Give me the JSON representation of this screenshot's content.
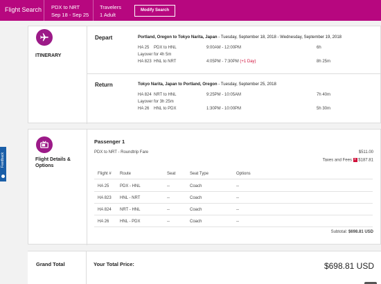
{
  "topbar": {
    "title": "Flight Search",
    "route": "PDX to NRT",
    "dates": "Sep 18 - Sep 25",
    "travelers_label": "Travelers",
    "travelers_value": "1 Adult",
    "modify_button": "Modify Search"
  },
  "feedback": {
    "label": "Feedback"
  },
  "itinerary": {
    "section_label": "ITINERARY",
    "depart": {
      "heading": "Depart",
      "route_bold": "Portland, Oregon to Tokyo Narita, Japan",
      "dates": " - Tuesday, September 18, 2018 - Wednesday, September 19, 2018",
      "flights": [
        {
          "flight": "HA 25",
          "route": "PDX to HNL",
          "time": "9:00AM - 12:00PM",
          "plus_day": "",
          "duration": "6h"
        },
        {
          "flight": "HA 823",
          "route": "HNL to NRT",
          "time": "4:05PM - 7:30PM",
          "plus_day": "(+1 Day)",
          "duration": "8h 25m"
        }
      ],
      "layover": "Layover for 4h 5m"
    },
    "return": {
      "heading": "Return",
      "route_bold": "Tokyo Narita, Japan to Portland, Oregon",
      "dates": " - Tuesday, September 25, 2018",
      "flights": [
        {
          "flight": "HA 824",
          "route": "NRT to HNL",
          "time": "9:25PM - 10:05AM",
          "plus_day": "",
          "duration": "7h 40m"
        },
        {
          "flight": "HA 26",
          "route": "HNL to PDX",
          "time": "1:30PM - 10:00PM",
          "plus_day": "",
          "duration": "5h 30m"
        }
      ],
      "layover": "Layover for 3h 25m"
    }
  },
  "details": {
    "section_label_1": "Flight Details &",
    "section_label_2": "Options",
    "passenger": "Passenger 1",
    "fare_label": "PDX to NRT - Roundtrip Fare",
    "fare_amount": "$511.00",
    "taxes_label": "Taxes and Fees",
    "taxes_amount": "$187.81",
    "table": {
      "headers": [
        "Flight #",
        "Route",
        "Seat",
        "Seat Type",
        "Options"
      ],
      "rows": [
        [
          "HA 25",
          "PDX - HNL",
          "--",
          "Coach",
          "--"
        ],
        [
          "HA 823",
          "HNL - NRT",
          "--",
          "Coach",
          "--"
        ],
        [
          "HA 824",
          "NRT - HNL",
          "--",
          "Coach",
          "--"
        ],
        [
          "HA 26",
          "HNL - PDX",
          "--",
          "Coach",
          "--"
        ]
      ]
    },
    "subtotal_label": "Subtotal:",
    "subtotal_value": "$698.81 USD"
  },
  "grand_total": {
    "label": "Grand Total",
    "price_label": "Your Total Price:",
    "price_value": "$698.81 USD"
  },
  "colors": {
    "brand": "#b7077f",
    "icon_bg": "#9c1a88",
    "accent_red": "#d0103a"
  },
  "icons": {
    "itinerary": "airplane-icon",
    "details": "seat-tv-icon"
  }
}
